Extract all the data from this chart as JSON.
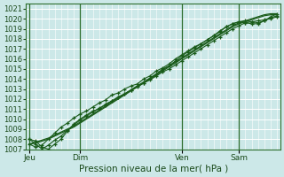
{
  "xlabel": "Pression niveau de la mer( hPa )",
  "bg_color": "#cce8e8",
  "grid_color": "#ffffff",
  "line_color": "#1a5c1a",
  "ylim": [
    1007,
    1021.5
  ],
  "yticks": [
    1007,
    1008,
    1009,
    1010,
    1011,
    1012,
    1013,
    1014,
    1015,
    1016,
    1017,
    1018,
    1019,
    1020,
    1021
  ],
  "day_labels": [
    "Jeu",
    "Dim",
    "Ven",
    "Sam"
  ],
  "day_positions": [
    0,
    8,
    24,
    33
  ],
  "xlim": [
    -0.5,
    39.5
  ],
  "num_points": 40,
  "series_smooth": [
    [
      1007.5,
      1007.7,
      1007.9,
      1008.1,
      1008.4,
      1008.7,
      1009.0,
      1009.3,
      1009.7,
      1010.1,
      1010.5,
      1010.9,
      1011.3,
      1011.7,
      1012.1,
      1012.5,
      1012.9,
      1013.3,
      1013.7,
      1014.1,
      1014.5,
      1014.9,
      1015.3,
      1015.7,
      1016.1,
      1016.5,
      1016.9,
      1017.3,
      1017.7,
      1018.1,
      1018.5,
      1018.9,
      1019.3,
      1019.6,
      1019.8,
      1020.0,
      1020.2,
      1020.4,
      1020.5,
      1020.5
    ],
    [
      1007.5,
      1007.6,
      1007.8,
      1008.0,
      1008.3,
      1008.6,
      1008.9,
      1009.2,
      1009.6,
      1010.0,
      1010.4,
      1010.8,
      1011.2,
      1011.6,
      1012.0,
      1012.4,
      1012.8,
      1013.2,
      1013.6,
      1014.0,
      1014.4,
      1014.8,
      1015.2,
      1015.6,
      1016.0,
      1016.4,
      1016.8,
      1017.2,
      1017.6,
      1018.0,
      1018.4,
      1018.8,
      1019.2,
      1019.5,
      1019.7,
      1019.9,
      1020.1,
      1020.3,
      1020.4,
      1020.4
    ]
  ],
  "series_wiggly": [
    [
      1007.5,
      1007.2,
      1007.4,
      1008.0,
      1008.6,
      1009.2,
      1009.6,
      1010.1,
      1010.5,
      1010.8,
      1011.2,
      1011.6,
      1011.9,
      1012.4,
      1012.6,
      1013.0,
      1013.3,
      1013.5,
      1014.0,
      1014.3,
      1014.8,
      1015.1,
      1015.5,
      1016.0,
      1016.4,
      1016.8,
      1017.2,
      1017.5,
      1017.9,
      1018.3,
      1018.8,
      1019.2,
      1019.5,
      1019.7,
      1019.6,
      1019.5,
      1019.5,
      1019.8,
      1020.2,
      1020.5
    ],
    [
      1008.0,
      1007.8,
      1007.2,
      1007.0,
      1007.5,
      1008.0,
      1008.8,
      1009.5,
      1010.0,
      1010.4,
      1010.8,
      1011.0,
      1011.5,
      1011.8,
      1012.2,
      1012.5,
      1012.9,
      1013.2,
      1013.6,
      1013.9,
      1014.3,
      1014.7,
      1015.0,
      1015.4,
      1015.8,
      1016.2,
      1016.6,
      1017.0,
      1017.4,
      1017.8,
      1018.2,
      1018.6,
      1019.0,
      1019.3,
      1019.6,
      1019.7,
      1019.8,
      1019.9,
      1020.0,
      1020.2
    ],
    [
      1008.0,
      1007.5,
      1007.0,
      1007.4,
      1007.9,
      1008.3,
      1008.9,
      1009.4,
      1009.9,
      1010.3,
      1010.7,
      1011.1,
      1011.4,
      1011.8,
      1012.2,
      1012.5,
      1012.9,
      1013.3,
      1013.6,
      1014.0,
      1014.5,
      1015.0,
      1015.3,
      1015.8,
      1016.3,
      1016.7,
      1017.1,
      1017.5,
      1017.9,
      1018.3,
      1018.7,
      1019.2,
      1019.5,
      1019.7,
      1019.8,
      1019.7,
      1019.6,
      1019.8,
      1020.1,
      1020.3
    ]
  ]
}
